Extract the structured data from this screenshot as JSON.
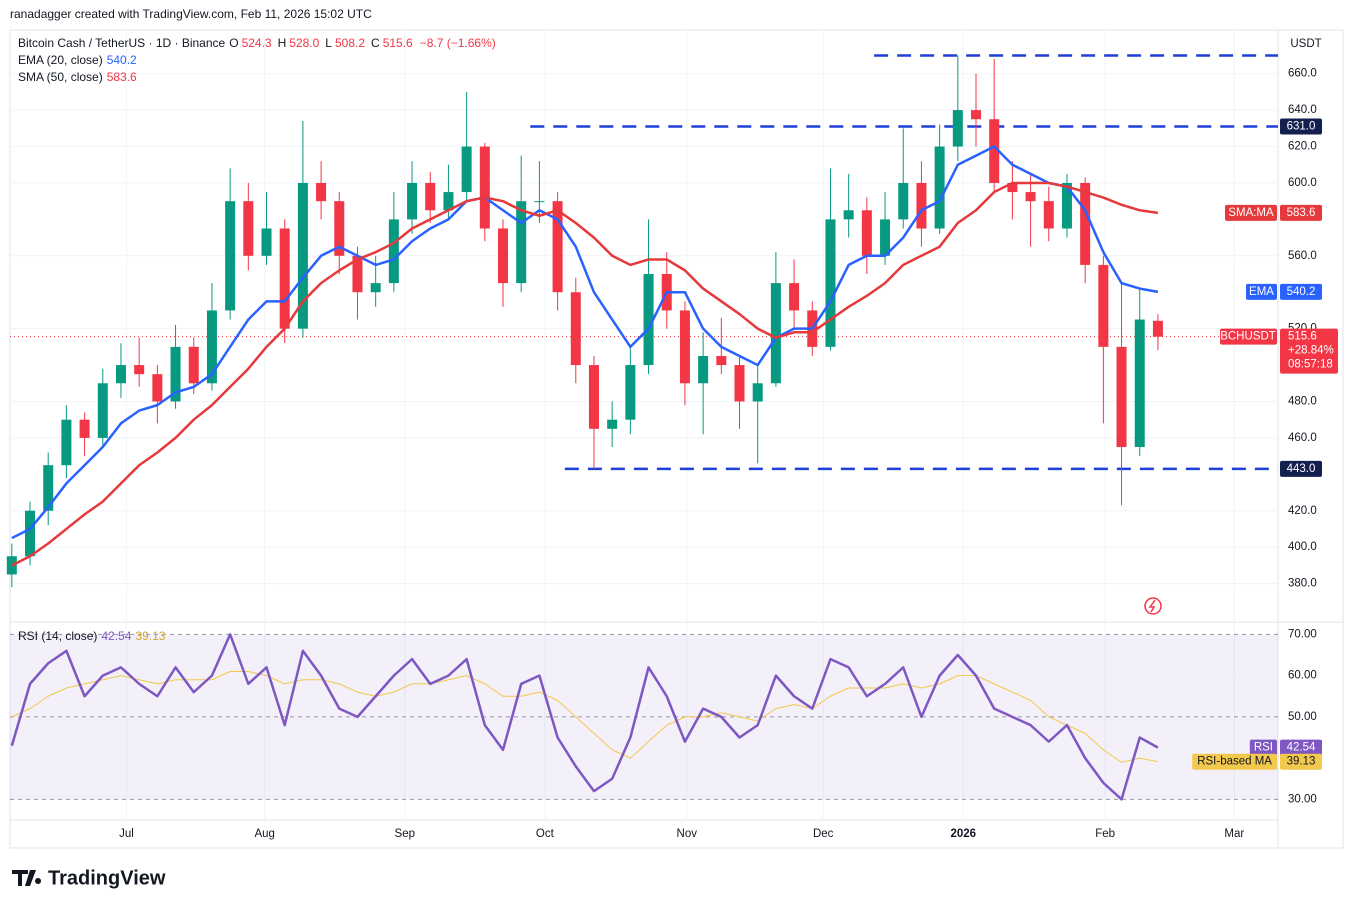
{
  "header": {
    "author": "ranadagger created with TradingView.com, Feb 11, 2026 15:02 UTC",
    "symbol": "Bitcoin Cash / TetherUS · 1D · Binance",
    "ohlc_labels": [
      {
        "key": "O",
        "value": "524.3"
      },
      {
        "key": "H",
        "value": "528.0"
      },
      {
        "key": "L",
        "value": "508.2"
      },
      {
        "key": "C",
        "value": "515.6"
      }
    ],
    "change": "−8.7 (−1.66%)",
    "currency": "USDT",
    "brand": "TradingView"
  },
  "chart_data": [
    {
      "type": "candlestick",
      "up_color": "#089981",
      "down_color": "#f23645",
      "ohlc": [
        [
          385,
          402,
          378,
          395
        ],
        [
          395,
          425,
          390,
          420
        ],
        [
          420,
          452,
          412,
          445
        ],
        [
          445,
          478,
          438,
          470
        ],
        [
          470,
          474,
          450,
          460
        ],
        [
          460,
          498,
          455,
          490
        ],
        [
          490,
          512,
          482,
          500
        ],
        [
          500,
          515,
          488,
          495
        ],
        [
          495,
          500,
          468,
          480
        ],
        [
          480,
          522,
          476,
          510
        ],
        [
          510,
          515,
          484,
          490
        ],
        [
          490,
          545,
          486,
          530
        ],
        [
          530,
          608,
          525,
          590
        ],
        [
          590,
          600,
          552,
          560
        ],
        [
          560,
          595,
          555,
          575
        ],
        [
          575,
          580,
          512,
          520
        ],
        [
          520,
          634,
          515,
          600
        ],
        [
          600,
          612,
          580,
          590
        ],
        [
          590,
          595,
          550,
          560
        ],
        [
          560,
          565,
          525,
          540
        ],
        [
          540,
          560,
          532,
          545
        ],
        [
          545,
          595,
          540,
          580
        ],
        [
          580,
          612,
          572,
          600
        ],
        [
          600,
          606,
          578,
          585
        ],
        [
          585,
          610,
          580,
          595
        ],
        [
          595,
          650,
          590,
          620
        ],
        [
          620,
          622,
          568,
          575
        ],
        [
          575,
          580,
          532,
          545
        ],
        [
          545,
          615,
          540,
          590
        ],
        [
          590,
          612,
          578,
          590
        ],
        [
          590,
          595,
          530,
          540
        ],
        [
          540,
          548,
          490,
          500
        ],
        [
          500,
          505,
          443,
          465
        ],
        [
          465,
          480,
          455,
          470
        ],
        [
          470,
          510,
          462,
          500
        ],
        [
          500,
          580,
          495,
          550
        ],
        [
          550,
          562,
          520,
          530
        ],
        [
          530,
          535,
          478,
          490
        ],
        [
          490,
          518,
          462,
          505
        ],
        [
          505,
          526,
          495,
          500
        ],
        [
          500,
          505,
          465,
          480
        ],
        [
          480,
          500,
          446,
          490
        ],
        [
          490,
          562,
          488,
          545
        ],
        [
          545,
          558,
          520,
          530
        ],
        [
          530,
          535,
          505,
          510
        ],
        [
          510,
          608,
          508,
          580
        ],
        [
          580,
          605,
          570,
          585
        ],
        [
          585,
          592,
          550,
          560
        ],
        [
          560,
          595,
          555,
          580
        ],
        [
          580,
          630,
          575,
          600
        ],
        [
          600,
          612,
          565,
          575
        ],
        [
          575,
          632,
          572,
          620
        ],
        [
          620,
          670,
          612,
          640
        ],
        [
          640,
          660,
          620,
          635
        ],
        [
          635,
          668,
          595,
          600
        ],
        [
          600,
          612,
          580,
          595
        ],
        [
          595,
          605,
          565,
          590
        ],
        [
          590,
          598,
          568,
          575
        ],
        [
          575,
          605,
          570,
          600
        ],
        [
          600,
          603,
          545,
          555
        ],
        [
          555,
          560,
          468,
          510
        ],
        [
          510,
          545,
          423,
          455
        ],
        [
          455,
          542,
          450,
          525
        ],
        [
          524.3,
          528,
          508.2,
          515.6
        ]
      ],
      "series": [
        {
          "name": "EMA (20, close)",
          "tag": "EMA",
          "color": "#2962ff",
          "values": [
            405,
            410,
            422,
            435,
            445,
            455,
            468,
            475,
            478,
            485,
            488,
            495,
            510,
            525,
            535,
            535,
            548,
            560,
            565,
            560,
            555,
            558,
            568,
            575,
            580,
            590,
            592,
            585,
            578,
            585,
            580,
            565,
            540,
            525,
            510,
            520,
            540,
            540,
            520,
            510,
            505,
            500,
            515,
            520,
            520,
            535,
            555,
            560,
            560,
            570,
            585,
            590,
            610,
            615,
            620,
            610,
            605,
            600,
            598,
            585,
            562,
            545,
            542,
            540.2
          ]
        },
        {
          "name": "SMA (50, close)",
          "tag": "SMA:MA",
          "color": "#e5393b",
          "values": [
            390,
            395,
            402,
            410,
            418,
            425,
            435,
            445,
            452,
            460,
            470,
            478,
            488,
            498,
            510,
            520,
            535,
            545,
            552,
            558,
            562,
            567,
            575,
            580,
            585,
            590,
            592,
            590,
            585,
            582,
            585,
            578,
            570,
            560,
            555,
            558,
            558,
            552,
            542,
            535,
            528,
            520,
            515,
            518,
            518,
            525,
            532,
            538,
            545,
            555,
            560,
            565,
            578,
            585,
            595,
            600,
            600,
            600,
            598,
            595,
            592,
            588,
            585,
            583.6
          ]
        }
      ],
      "levels": [
        {
          "value": 670,
          "start": 47.4
        },
        {
          "value": 631.0,
          "label": "631.0",
          "start": 28.5
        },
        {
          "value": 443.0,
          "label": "443.0",
          "start": 30.4
        }
      ],
      "price_tag": {
        "symbol": "BCHUSDT",
        "change": "+28.84%",
        "countdown": "08:57:18"
      },
      "ylim": [
        360,
        684
      ],
      "yticks": [
        {
          "value": 380,
          "label": "380.0"
        },
        {
          "value": 400,
          "label": "400.0"
        },
        {
          "value": 420,
          "label": "420.0"
        },
        {
          "value": 460,
          "label": "460.0"
        },
        {
          "value": 480,
          "label": "480.0"
        },
        {
          "value": 520,
          "label": "520.0"
        },
        {
          "value": 560,
          "label": "560.0"
        },
        {
          "value": 600,
          "label": "600.0"
        },
        {
          "value": 620,
          "label": "620.0"
        },
        {
          "value": 640,
          "label": "640.0"
        },
        {
          "value": 660,
          "label": "660.0"
        }
      ],
      "xlim": [
        -0.1,
        69.6
      ],
      "xticks": [
        {
          "value": 6.3,
          "label": "Jul"
        },
        {
          "value": 13.9,
          "label": "Aug"
        },
        {
          "value": 21.6,
          "label": "Sep"
        },
        {
          "value": 29.3,
          "label": "Oct"
        },
        {
          "value": 37.1,
          "label": "Nov"
        },
        {
          "value": 44.6,
          "label": "Dec"
        },
        {
          "value": 52.3,
          "label": "2026"
        },
        {
          "value": 60.1,
          "label": "Feb"
        },
        {
          "value": 67.2,
          "label": "Mar"
        }
      ]
    },
    {
      "type": "line",
      "band": [
        30,
        70
      ],
      "series": [
        {
          "name": "RSI (14, close)",
          "tag": "RSI",
          "color": "#7e57c2",
          "values": [
            43,
            58,
            63,
            66,
            55,
            60,
            62,
            58,
            55,
            62,
            56,
            60,
            70,
            58,
            62,
            48,
            66,
            60,
            52,
            50,
            55,
            60,
            64,
            58,
            60,
            64,
            48,
            42,
            58,
            60,
            45,
            38,
            32,
            35,
            45,
            62,
            55,
            44,
            52,
            50,
            45,
            48,
            60,
            55,
            52,
            64,
            62,
            55,
            58,
            62,
            50,
            60,
            65,
            60,
            52,
            50,
            48,
            44,
            48,
            40,
            34,
            30,
            45,
            42.54
          ]
        },
        {
          "name": "RSI-based MA",
          "tag": "RSI-based MA",
          "color": "#f2c94c",
          "values": [
            50,
            52,
            55,
            57,
            58,
            59,
            60,
            59,
            58,
            59,
            59,
            59,
            61,
            61,
            60,
            58,
            59,
            59,
            58,
            56,
            55,
            56,
            58,
            58,
            59,
            60,
            58,
            55,
            55,
            56,
            54,
            50,
            46,
            42,
            40,
            44,
            48,
            50,
            50,
            51,
            50,
            49,
            52,
            53,
            52,
            55,
            57,
            57,
            57,
            58,
            57,
            58,
            60,
            60,
            58,
            56,
            54,
            50,
            48,
            46,
            42,
            39,
            40,
            39.13
          ]
        }
      ],
      "ylim": [
        25,
        73
      ],
      "yticks": [
        {
          "value": 30,
          "label": "30.00"
        },
        {
          "value": 50,
          "label": "50.00"
        },
        {
          "value": 60,
          "label": "60.00"
        },
        {
          "value": 70,
          "label": "70.00"
        }
      ]
    }
  ]
}
